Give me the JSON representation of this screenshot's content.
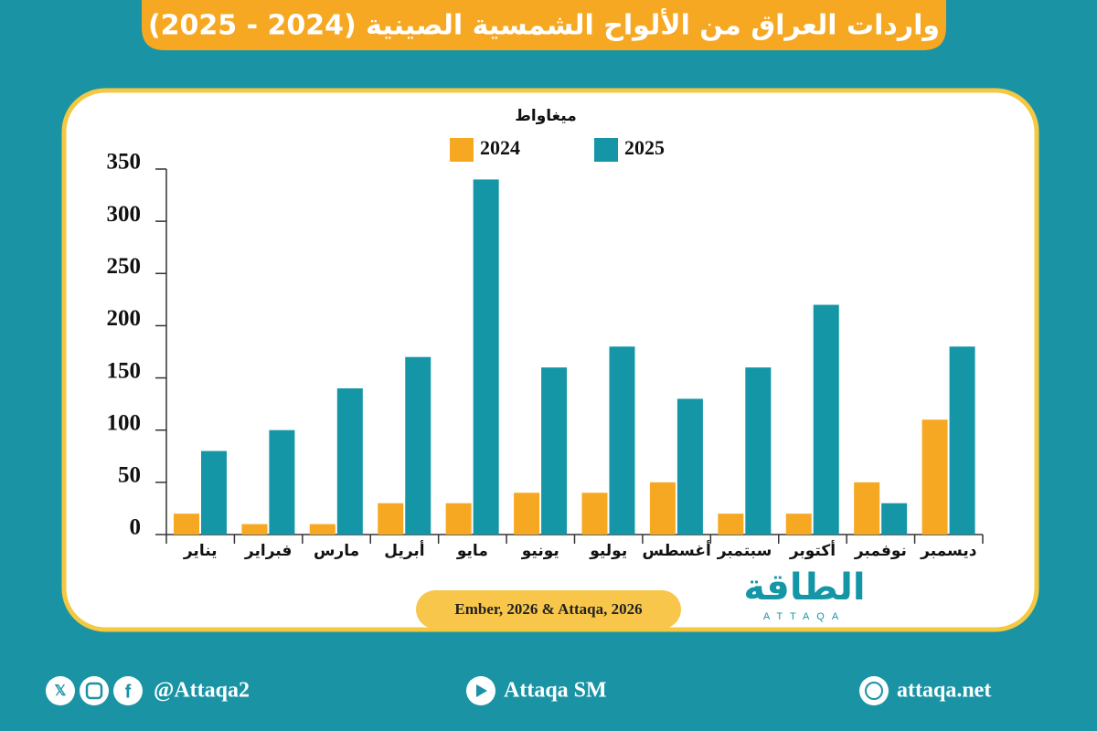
{
  "chart_data": {
    "type": "bar",
    "title": "واردات العراق من الألواح الشمسية الصينية (2024 - 2025)",
    "y_label": "ميغاواط",
    "source": "Ember, 2026 & Attaqa, 2026",
    "categories": [
      "يناير",
      "فبراير",
      "مارس",
      "أبريل",
      "مايو",
      "يونيو",
      "يوليو",
      "أغسطس",
      "سبتمبر",
      "أكتوبر",
      "نوفمبر",
      "ديسمبر"
    ],
    "series": [
      {
        "name": "2024",
        "color": "#f7a823",
        "values": [
          20,
          10,
          10,
          30,
          30,
          40,
          40,
          50,
          20,
          20,
          50,
          110
        ]
      },
      {
        "name": "2025",
        "color": "#1596a6",
        "values": [
          80,
          100,
          140,
          170,
          340,
          160,
          180,
          130,
          160,
          220,
          30,
          180
        ]
      }
    ],
    "ylim": [
      0,
      350
    ],
    "yticks": [
      0,
      50,
      100,
      150,
      200,
      250,
      300,
      350
    ],
    "grid": false
  },
  "branding": {
    "logo": "الطاقة",
    "logo_sub": "ATTAQA",
    "social": "@Attaqa2",
    "youtube": "Attaqa SM",
    "website": "attaqa.net"
  }
}
